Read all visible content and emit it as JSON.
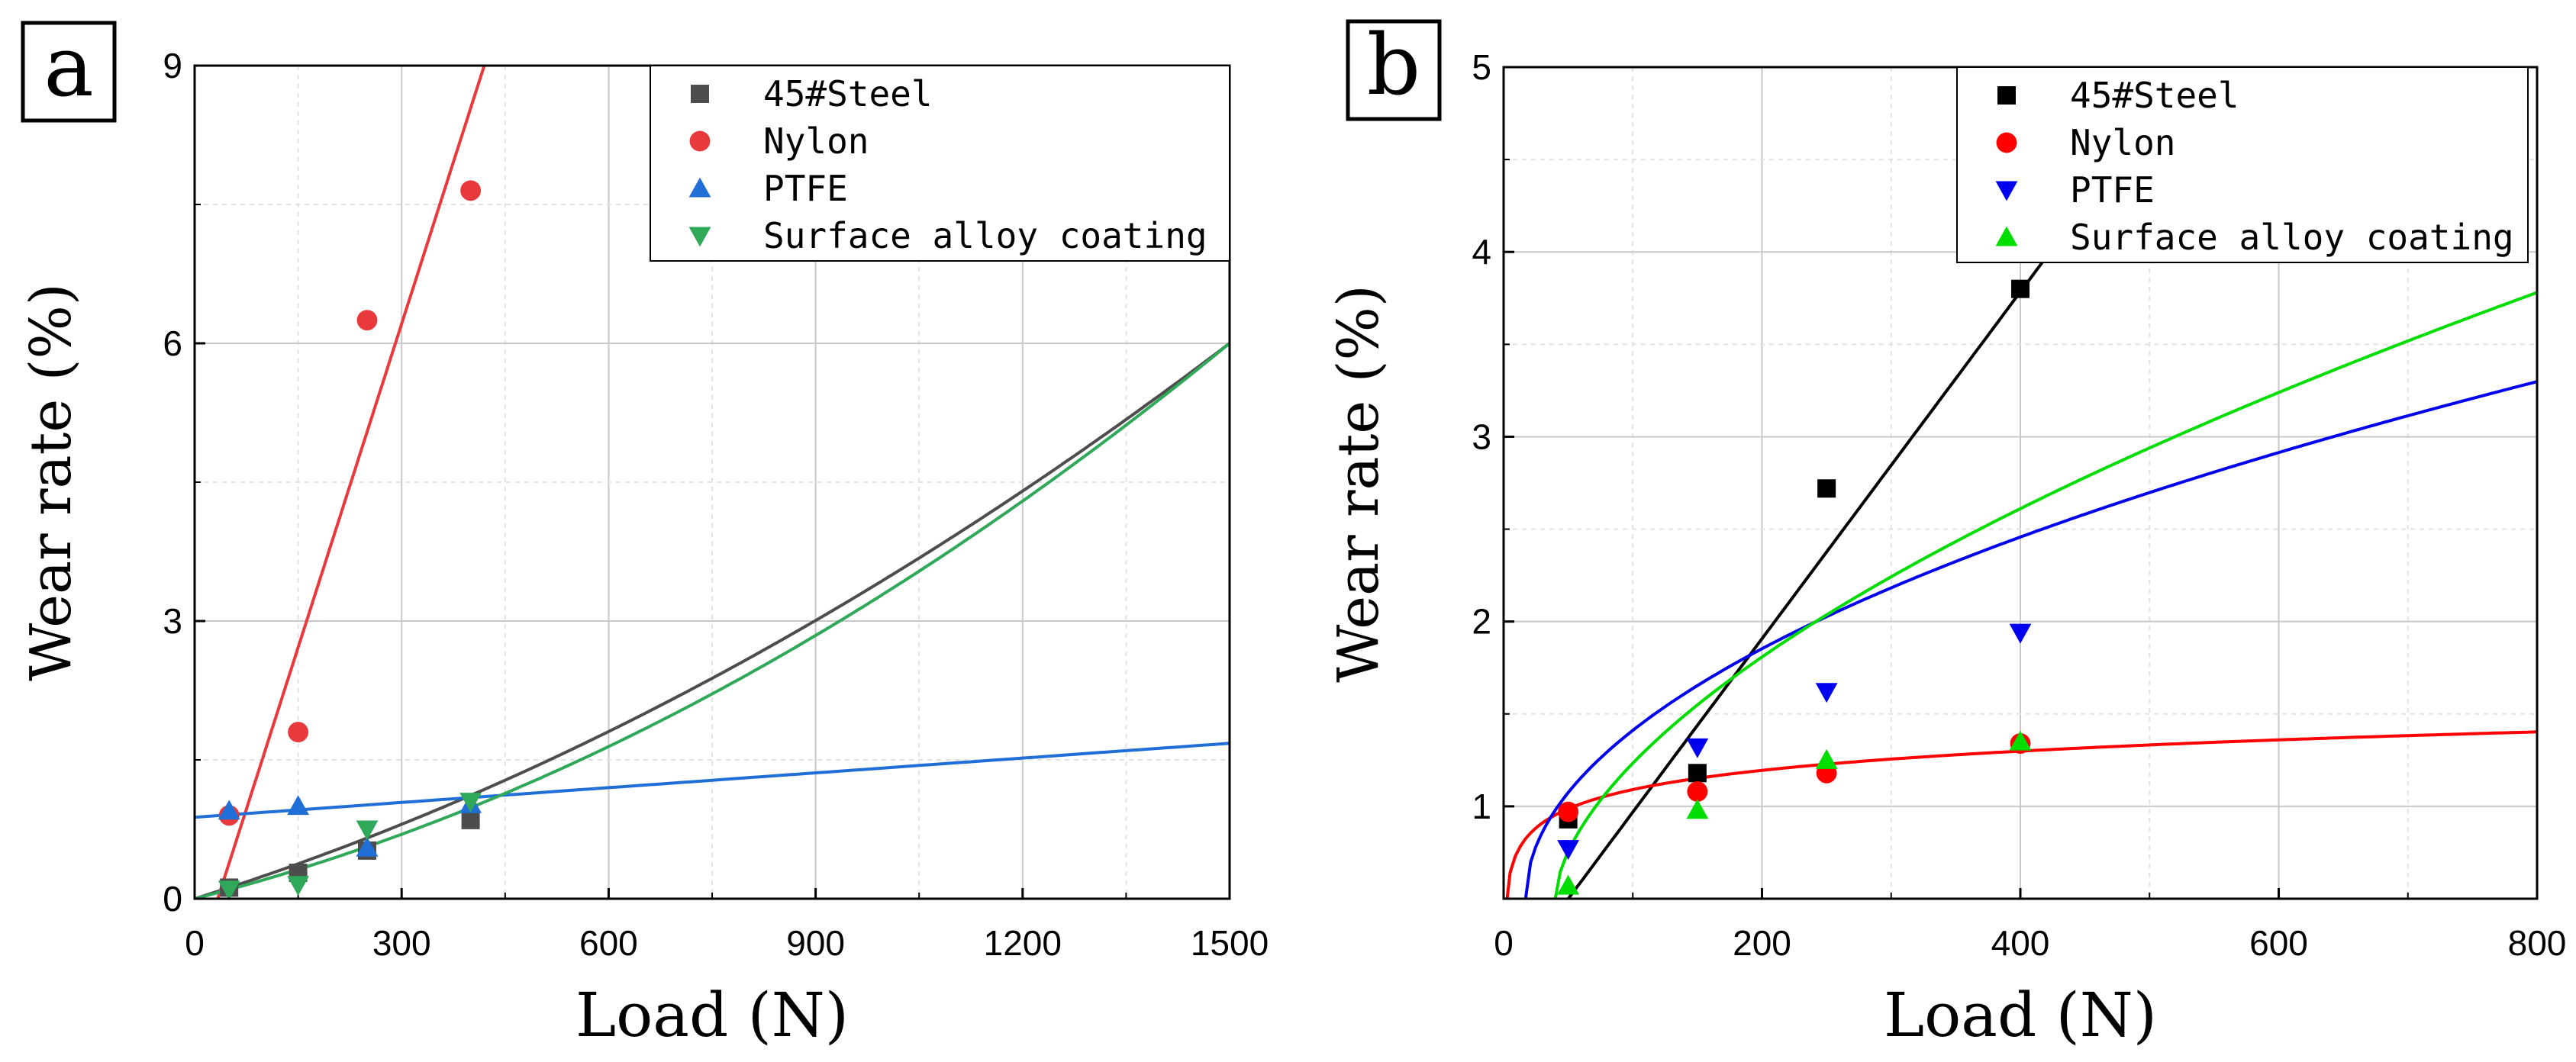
{
  "colors": {
    "black": "#000000",
    "grid_major": "#c8c8c8",
    "grid_minor": "#e2e2e2",
    "steel_a": "#4d4d4d",
    "nylon_a": "#e8393c",
    "ptfe_a": "#1f6fd6",
    "coating_a": "#2fa85a",
    "steel_b": "#000000",
    "nylon_b": "#ff0000",
    "ptfe_b": "#0000ee",
    "coating_b": "#00dd00"
  },
  "chart_data": [
    {
      "panel_label": "a",
      "type": "scatter",
      "title": "",
      "xlabel": "Load (N)",
      "ylabel": "Wear rate (%)",
      "xlim": [
        0,
        1500
      ],
      "ylim": [
        0,
        9
      ],
      "xticks": [
        0,
        300,
        600,
        900,
        1200,
        1500
      ],
      "yticks": [
        0,
        3,
        6,
        9
      ],
      "grid": true,
      "legend_position": "top-right",
      "series": [
        {
          "name": "45#Steel",
          "marker": "square",
          "color_key": "steel_a",
          "x": [
            50,
            150,
            250,
            400
          ],
          "y": [
            0.12,
            0.28,
            0.52,
            0.85
          ],
          "fit": {
            "kind": "power",
            "a": 0.00235,
            "b": 1.05,
            "c": 1.1e-06,
            "xmin": 0,
            "xmax": 1500
          }
        },
        {
          "name": "Nylon",
          "marker": "circle",
          "color_key": "nylon_a",
          "x": [
            50,
            150,
            250,
            400
          ],
          "y": [
            0.9,
            1.8,
            6.25,
            7.65
          ],
          "fit": {
            "kind": "linear",
            "slope": 0.0233,
            "intercept": -0.78,
            "xmin": 25,
            "xmax": 1500
          }
        },
        {
          "name": "PTFE",
          "marker": "triangle-up",
          "color_key": "ptfe_a",
          "x": [
            50,
            150,
            250,
            400
          ],
          "y": [
            0.95,
            1.0,
            0.55,
            1.02
          ],
          "fit": {
            "kind": "linear",
            "slope": 0.000533,
            "intercept": 0.88,
            "xmin": 0,
            "xmax": 1500
          }
        },
        {
          "name": "Surface alloy coating",
          "marker": "triangle-down",
          "color_key": "coating_a",
          "x": [
            50,
            150,
            250,
            400
          ],
          "y": [
            0.1,
            0.15,
            0.75,
            1.05
          ],
          "fit": {
            "kind": "power",
            "a": 0.0019,
            "b": 1.05,
            "c": 1.4e-06,
            "xmin": 0,
            "xmax": 1500
          }
        }
      ]
    },
    {
      "panel_label": "b",
      "type": "scatter",
      "title": "",
      "xlabel": "Load (N)",
      "ylabel": "Wear rate (%)",
      "xlim": [
        0,
        800
      ],
      "ylim": [
        0.5,
        5
      ],
      "xticks": [
        0,
        200,
        400,
        600,
        800
      ],
      "yticks": [
        1,
        2,
        3,
        4,
        5
      ],
      "grid": true,
      "legend_position": "top-right",
      "series": [
        {
          "name": "45#Steel",
          "marker": "square",
          "color_key": "steel_b",
          "x": [
            50,
            150,
            250,
            400
          ],
          "y": [
            0.93,
            1.18,
            2.72,
            3.8
          ],
          "fit": {
            "kind": "linear",
            "slope": 0.009385,
            "intercept": 0.03,
            "xmin": 42,
            "xmax": 800
          }
        },
        {
          "name": "Nylon",
          "marker": "circle",
          "color_key": "nylon_b",
          "x": [
            50,
            150,
            250,
            400
          ],
          "y": [
            0.97,
            1.08,
            1.18,
            1.34
          ],
          "fit": {
            "kind": "log",
            "a": 0.15,
            "b": 0.4,
            "xmin": 1,
            "xmax": 800
          }
        },
        {
          "name": "PTFE",
          "marker": "triangle-down",
          "color_key": "ptfe_b",
          "x": [
            50,
            150,
            250,
            400
          ],
          "y": [
            0.77,
            1.32,
            1.62,
            1.94
          ],
          "fit": {
            "kind": "offset-power",
            "a": 0.1,
            "x0": 17,
            "b": 0.5,
            "xmin": 17,
            "xmax": 800
          }
        },
        {
          "name": "Surface alloy coating",
          "marker": "triangle-up",
          "color_key": "coating_b",
          "x": [
            50,
            150,
            250,
            400
          ],
          "y": [
            0.57,
            0.98,
            1.25,
            1.35
          ],
          "fit": {
            "kind": "offset-power",
            "a": 0.0655,
            "x0": 40,
            "b": 0.59,
            "xmin": 40,
            "xmax": 800
          }
        }
      ]
    }
  ]
}
